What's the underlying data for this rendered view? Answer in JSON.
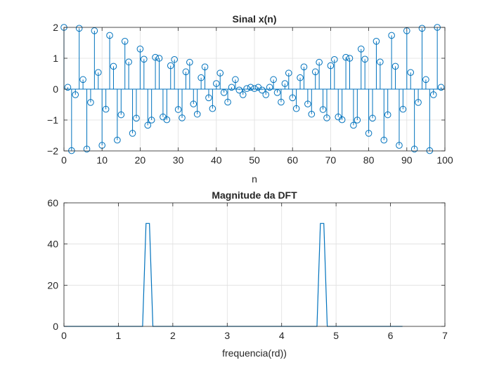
{
  "colors": {
    "series": "#0072bd",
    "grid": "#dfdfdf",
    "axis": "#262626",
    "background": "#ffffff"
  },
  "chart_data": [
    {
      "type": "stem",
      "title": "Sinal x(n)",
      "xlabel": "n",
      "ylabel": "",
      "xlim": [
        0,
        100
      ],
      "ylim": [
        -2,
        2
      ],
      "xticks": [
        0,
        10,
        20,
        30,
        40,
        50,
        60,
        70,
        80,
        90,
        100
      ],
      "yticks": [
        -2,
        -1,
        0,
        1,
        2
      ],
      "grid": true,
      "marker": "circle",
      "series": [
        {
          "x": [
            0,
            1,
            2,
            3,
            4,
            5,
            6,
            7,
            8,
            9,
            10,
            11,
            12,
            13,
            14,
            15,
            16,
            17,
            18,
            19,
            20,
            21,
            22,
            23,
            24,
            25,
            26,
            27,
            28,
            29,
            30,
            31,
            32,
            33,
            34,
            35,
            36,
            37,
            38,
            39,
            40,
            41,
            42,
            43,
            44,
            45,
            46,
            47,
            48,
            49,
            50,
            51,
            52,
            53,
            54,
            55,
            56,
            57,
            58,
            59,
            60,
            61,
            62,
            63,
            64,
            65,
            66,
            67,
            68,
            69,
            70,
            71,
            72,
            73,
            74,
            75,
            76,
            77,
            78,
            79,
            80,
            81,
            82,
            83,
            84,
            85,
            86,
            87,
            88,
            89,
            90,
            91,
            92,
            93,
            94,
            95,
            96,
            97,
            98,
            99
          ],
          "y": [
            2.0,
            0.06,
            -1.99,
            -0.18,
            1.97,
            0.31,
            -1.94,
            -0.43,
            1.89,
            0.54,
            -1.82,
            -0.65,
            1.74,
            0.74,
            -1.65,
            -0.83,
            1.55,
            0.88,
            -1.43,
            -0.94,
            1.3,
            0.97,
            -1.17,
            -1.0,
            1.03,
            1.0,
            -0.9,
            -0.99,
            0.76,
            0.96,
            -0.66,
            -0.93,
            0.56,
            0.87,
            -0.48,
            -0.81,
            0.37,
            0.72,
            -0.28,
            -0.63,
            0.18,
            0.52,
            -0.11,
            -0.42,
            0.06,
            0.31,
            -0.03,
            -0.18,
            0.02,
            0.06,
            0.02,
            0.06,
            -0.03,
            -0.18,
            0.06,
            0.31,
            -0.11,
            -0.42,
            0.18,
            0.52,
            -0.28,
            -0.63,
            0.37,
            0.72,
            -0.48,
            -0.81,
            0.56,
            0.87,
            -0.66,
            -0.93,
            0.76,
            0.96,
            -0.9,
            -0.99,
            1.03,
            1.0,
            -1.17,
            -1.0,
            1.3,
            0.97,
            -1.43,
            -0.94,
            1.55,
            0.88,
            -1.65,
            -0.83,
            1.74,
            0.74,
            -1.82,
            -0.65,
            1.89,
            0.54,
            -1.94,
            -0.43,
            1.97,
            0.31,
            -1.99,
            -0.18,
            2.0,
            0.06
          ]
        }
      ]
    },
    {
      "type": "line",
      "title": "Magnitude da DFT",
      "xlabel": "frequencia(rd))",
      "ylabel": "",
      "xlim": [
        0,
        7
      ],
      "ylim": [
        0,
        60
      ],
      "xticks": [
        0,
        1,
        2,
        3,
        4,
        5,
        6,
        7
      ],
      "yticks": [
        0,
        20,
        40,
        60
      ],
      "grid": true,
      "series": [
        {
          "x": [
            0.0,
            1.445,
            1.508,
            1.571,
            1.634,
            4.649,
            4.712,
            4.775,
            4.838,
            6.22
          ],
          "y": [
            0,
            0,
            50,
            50,
            0,
            0,
            50,
            50,
            0,
            0
          ]
        }
      ]
    }
  ]
}
